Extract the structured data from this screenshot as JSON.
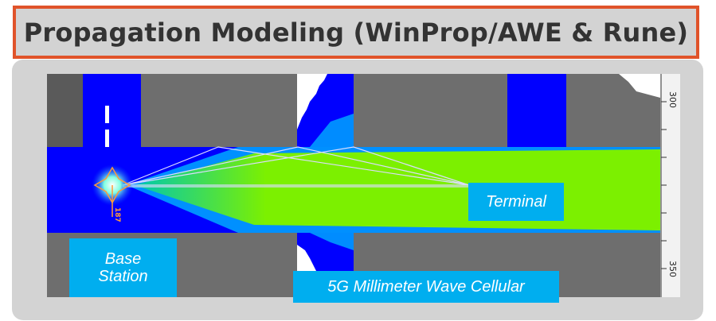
{
  "header": {
    "title": "Propagation Modeling (WinProp/AWE & Rune)"
  },
  "simulation": {
    "scale_ticks": [
      "300",
      "350"
    ],
    "colors": {
      "street": "#7cf000",
      "building": "#6e6e6e",
      "coverage_low": "#0000ff",
      "ray": "#ddddff"
    },
    "site_label": "187"
  },
  "labels": {
    "terminal": "Terminal",
    "base_line1": "Base",
    "base_line2": "Station",
    "network": "5G Millimeter Wave Cellular"
  }
}
